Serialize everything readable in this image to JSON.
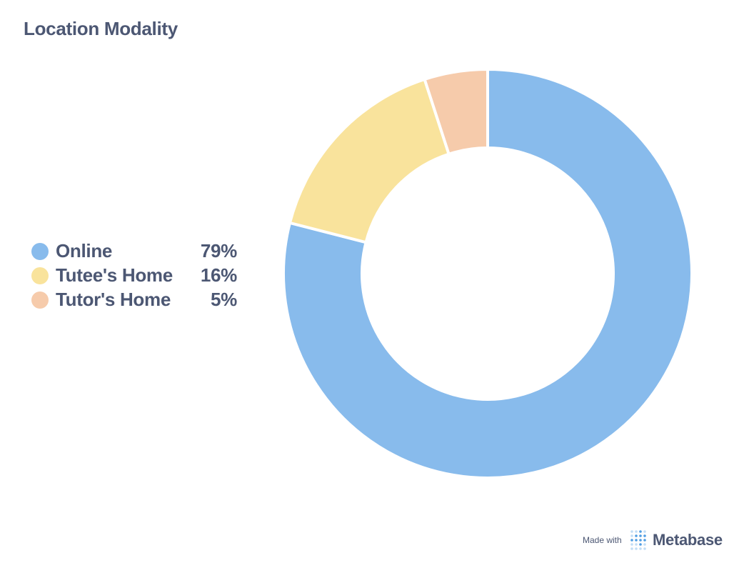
{
  "colors": {
    "text": "#4c5773",
    "footer_text": "#4c5773",
    "separator": "#ffffff",
    "logo": "#509ee3"
  },
  "chart_data": {
    "type": "pie",
    "title": "Location Modality",
    "donut": true,
    "legend_position": "left",
    "slices": [
      {
        "label": "Online",
        "value": 79,
        "display": "79%",
        "color": "#88bbec"
      },
      {
        "label": "Tutee's Home",
        "value": 16,
        "display": "16%",
        "color": "#f9e39c"
      },
      {
        "label": "Tutor's Home",
        "value": 5,
        "display": "5%",
        "color": "#f6cbab"
      }
    ]
  },
  "footer": {
    "made_with": "Made with",
    "brand": "Metabase",
    "logo_icon": "metabase-dots-icon"
  }
}
